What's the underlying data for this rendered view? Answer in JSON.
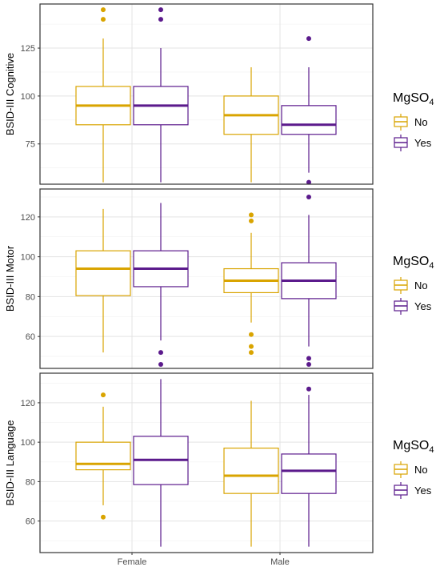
{
  "chart_data": [
    {
      "type": "boxplot",
      "ylabel": "BSID-III Cognitive",
      "ylim": [
        54,
        148
      ],
      "yticks": [
        75,
        100,
        125
      ],
      "categories": [
        "Female",
        "Male"
      ],
      "series": [
        {
          "name": "No",
          "color": "#D9A400",
          "boxes": [
            {
              "category": "Female",
              "min": 55,
              "q1": 85,
              "median": 95,
              "q3": 105,
              "max": 130,
              "outliers": [
                140,
                145
              ]
            },
            {
              "category": "Male",
              "min": 55,
              "q1": 80,
              "median": 90,
              "q3": 100,
              "max": 115,
              "outliers": []
            }
          ]
        },
        {
          "name": "Yes",
          "color": "#5B1A8C",
          "boxes": [
            {
              "category": "Female",
              "min": 55,
              "q1": 85,
              "median": 95,
              "q3": 105,
              "max": 125,
              "outliers": [
                140,
                145
              ]
            },
            {
              "category": "Male",
              "min": 60,
              "q1": 80,
              "median": 85,
              "q3": 95,
              "max": 115,
              "outliers": [
                55,
                130
              ]
            }
          ]
        }
      ],
      "legend": {
        "title_base": "MgSO",
        "title_sub": "4",
        "items": [
          "No",
          "Yes"
        ]
      }
    },
    {
      "type": "boxplot",
      "ylabel": "BSID-III Motor",
      "ylim": [
        44,
        134
      ],
      "yticks": [
        60,
        80,
        100,
        120
      ],
      "categories": [
        "Female",
        "Male"
      ],
      "series": [
        {
          "name": "No",
          "color": "#D9A400",
          "boxes": [
            {
              "category": "Female",
              "min": 52,
              "q1": 80.5,
              "median": 94,
              "q3": 103,
              "max": 124,
              "outliers": []
            },
            {
              "category": "Male",
              "min": 67,
              "q1": 82,
              "median": 88,
              "q3": 94,
              "max": 112,
              "outliers": [
                52,
                55,
                61,
                118,
                121
              ]
            }
          ]
        },
        {
          "name": "Yes",
          "color": "#5B1A8C",
          "boxes": [
            {
              "category": "Female",
              "min": 58,
              "q1": 85,
              "median": 94,
              "q3": 103,
              "max": 127,
              "outliers": [
                46,
                52
              ]
            },
            {
              "category": "Male",
              "min": 55,
              "q1": 79,
              "median": 88,
              "q3": 97,
              "max": 121,
              "outliers": [
                46,
                49,
                130
              ]
            }
          ]
        }
      ],
      "legend": {
        "title_base": "MgSO",
        "title_sub": "4",
        "items": [
          "No",
          "Yes"
        ]
      }
    },
    {
      "type": "boxplot",
      "ylabel": "BSID-III Language",
      "xlabel": "",
      "ylim": [
        44,
        135
      ],
      "yticks": [
        60,
        80,
        100,
        120
      ],
      "categories": [
        "Female",
        "Male"
      ],
      "series": [
        {
          "name": "No",
          "color": "#D9A400",
          "boxes": [
            {
              "category": "Female",
              "min": 68,
              "q1": 86,
              "median": 89,
              "q3": 100,
              "max": 118,
              "outliers": [
                62,
                124
              ]
            },
            {
              "category": "Male",
              "min": 47,
              "q1": 74,
              "median": 83,
              "q3": 97,
              "max": 121,
              "outliers": []
            }
          ]
        },
        {
          "name": "Yes",
          "color": "#5B1A8C",
          "boxes": [
            {
              "category": "Female",
              "min": 47,
              "q1": 78.5,
              "median": 91,
              "q3": 103,
              "max": 132,
              "outliers": []
            },
            {
              "category": "Male",
              "min": 47,
              "q1": 74,
              "median": 85.5,
              "q3": 94,
              "max": 124,
              "outliers": [
                127
              ]
            }
          ]
        }
      ],
      "legend": {
        "title_base": "MgSO",
        "title_sub": "4",
        "items": [
          "No",
          "Yes"
        ]
      }
    }
  ]
}
